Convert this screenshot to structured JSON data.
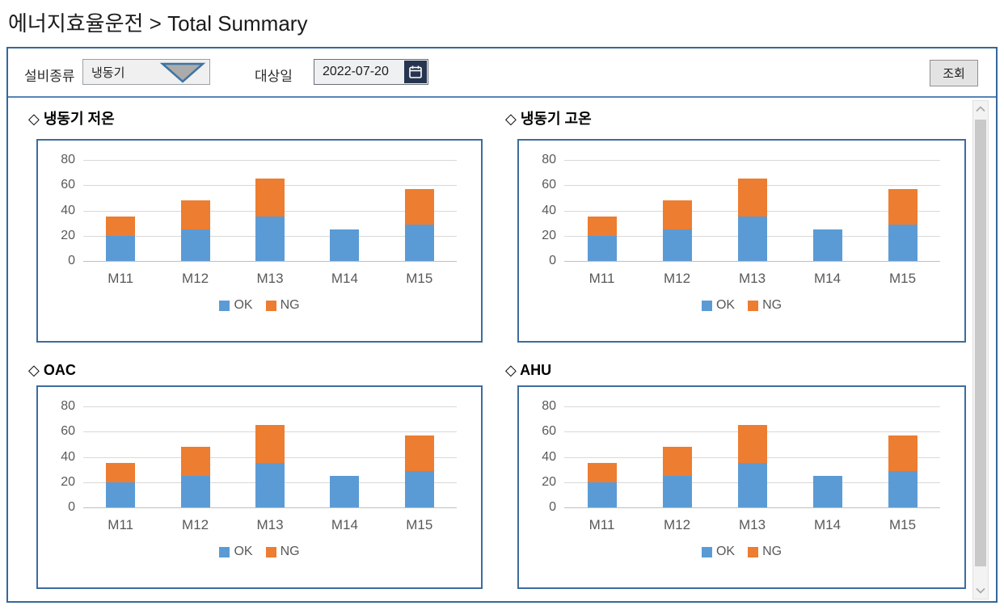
{
  "page": {
    "title": "에너지효율운전 > Total Summary"
  },
  "filter_bar": {
    "equipment_type": {
      "label": "설비종류",
      "value": "냉동기"
    },
    "target_date": {
      "label": "대상일",
      "value": "2022-07-20"
    },
    "search_button_label": "조회"
  },
  "icons": {
    "dropdown_arrow": "triangle-down",
    "calendar": "calendar",
    "scroll_up": "chevron-up",
    "scroll_down": "chevron-down"
  },
  "colors": {
    "ok_series": "#5B9BD5",
    "ng_series": "#ED7D31",
    "outer_border": "#36689A",
    "panel_border": "#3D6C9E",
    "separator": "#5586B3",
    "gridline": "#D9D9D9",
    "axis_text": "#595959",
    "calendar_button_bg": "#263450"
  },
  "chart_data": [
    {
      "type": "bar",
      "stacked": true,
      "title": "◇ 냉동기 저온",
      "categories": [
        "M11",
        "M12",
        "M13",
        "M14",
        "M15"
      ],
      "series": [
        {
          "name": "OK",
          "color": "#5B9BD5",
          "values": [
            20,
            25,
            35,
            25,
            29
          ]
        },
        {
          "name": "NG",
          "color": "#ED7D31",
          "values": [
            15,
            23,
            30,
            0,
            28
          ]
        }
      ],
      "ylim": [
        0,
        80
      ],
      "yticks": [
        0,
        20,
        40,
        60,
        80
      ],
      "grid": true,
      "legend_position": "bottom"
    },
    {
      "type": "bar",
      "stacked": true,
      "title": "◇ 냉동기 고온",
      "categories": [
        "M11",
        "M12",
        "M13",
        "M14",
        "M15"
      ],
      "series": [
        {
          "name": "OK",
          "color": "#5B9BD5",
          "values": [
            20,
            25,
            35,
            25,
            29
          ]
        },
        {
          "name": "NG",
          "color": "#ED7D31",
          "values": [
            15,
            23,
            30,
            0,
            28
          ]
        }
      ],
      "ylim": [
        0,
        80
      ],
      "yticks": [
        0,
        20,
        40,
        60,
        80
      ],
      "grid": true,
      "legend_position": "bottom"
    },
    {
      "type": "bar",
      "stacked": true,
      "title": "◇ OAC",
      "categories": [
        "M11",
        "M12",
        "M13",
        "M14",
        "M15"
      ],
      "series": [
        {
          "name": "OK",
          "color": "#5B9BD5",
          "values": [
            20,
            25,
            35,
            25,
            29
          ]
        },
        {
          "name": "NG",
          "color": "#ED7D31",
          "values": [
            15,
            23,
            30,
            0,
            28
          ]
        }
      ],
      "ylim": [
        0,
        80
      ],
      "yticks": [
        0,
        20,
        40,
        60,
        80
      ],
      "grid": true,
      "legend_position": "bottom"
    },
    {
      "type": "bar",
      "stacked": true,
      "title": "◇ AHU",
      "categories": [
        "M11",
        "M12",
        "M13",
        "M14",
        "M15"
      ],
      "series": [
        {
          "name": "OK",
          "color": "#5B9BD5",
          "values": [
            20,
            25,
            35,
            25,
            29
          ]
        },
        {
          "name": "NG",
          "color": "#ED7D31",
          "values": [
            15,
            23,
            30,
            0,
            28
          ]
        }
      ],
      "ylim": [
        0,
        80
      ],
      "yticks": [
        0,
        20,
        40,
        60,
        80
      ],
      "grid": true,
      "legend_position": "bottom"
    }
  ]
}
